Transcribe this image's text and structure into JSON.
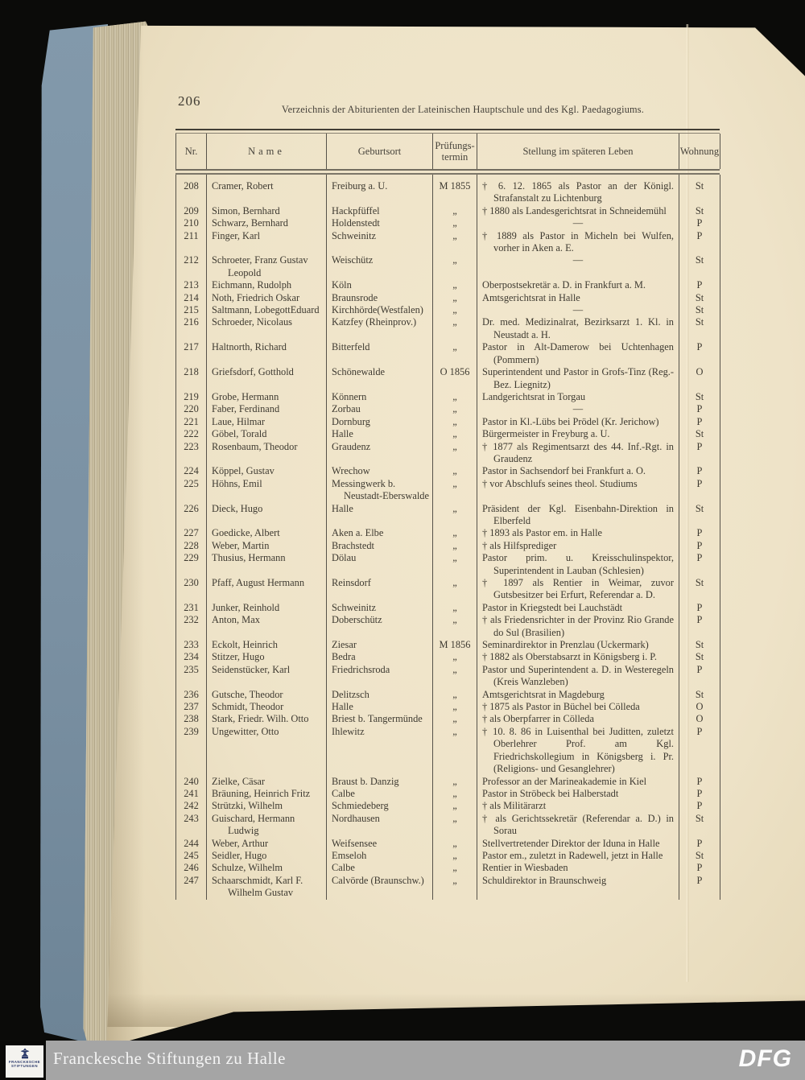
{
  "page": {
    "page_number": "206",
    "title": "Verzeichnis der Abiturienten der Lateinischen Hauptschule und des Kgl. Paedagogiums."
  },
  "table": {
    "headers": {
      "nr": "Nr.",
      "name": "Name",
      "birthplace": "Geburtsort",
      "term_line1": "Prüfungs-",
      "term_line2": "termin",
      "career": "Stellung im späteren Leben",
      "residence": "Wohnung"
    },
    "rows": [
      {
        "nr": "208",
        "name": "Cramer, Robert",
        "birthplace": "Freiburg a. U.",
        "term": "M 1855",
        "career": "† 6. 12. 1865 als Pastor an der Königl. Strafanstalt zu Lichtenburg",
        "residence": "St"
      },
      {
        "nr": "209",
        "name": "Simon, Bernhard",
        "birthplace": "Hackpfüffel",
        "term": "„",
        "career": "† 1880 als Landesgerichtsrat in Schneidemühl",
        "residence": "St"
      },
      {
        "nr": "210",
        "name": "Schwarz, Bernhard",
        "birthplace": "Holdenstedt",
        "term": "„",
        "career": "—",
        "residence": "P"
      },
      {
        "nr": "211",
        "name": "Finger, Karl",
        "birthplace": "Schweinitz",
        "term": "„",
        "career": "† 1889 als Pastor in Micheln bei Wulfen, vorher in Aken a. E.",
        "residence": "P"
      },
      {
        "nr": "212",
        "name": "Schroeter, Franz Gustav Leopold",
        "birthplace": "Weischütz",
        "term": "„",
        "career": "—",
        "residence": "St"
      },
      {
        "nr": "213",
        "name": "Eichmann, Rudolph",
        "birthplace": "Köln",
        "term": "„",
        "career": "Oberpostsekretär a. D. in Frankfurt a. M.",
        "residence": "P"
      },
      {
        "nr": "214",
        "name": "Noth, Friedrich Oskar",
        "birthplace": "Braunsrode",
        "term": "„",
        "career": "Amtsgerichtsrat in Halle",
        "residence": "St"
      },
      {
        "nr": "215",
        "name": "Saltmann, LobegottEduard",
        "birthplace": "Kirchhörde(Westfalen)",
        "term": "„",
        "career": "—",
        "residence": "St"
      },
      {
        "nr": "216",
        "name": "Schroeder, Nicolaus",
        "birthplace": "Katzfey (Rheinprov.)",
        "term": "„",
        "career": "Dr. med. Medizinalrat, Bezirksarzt 1. Kl. in Neustadt a. H.",
        "residence": "St"
      },
      {
        "nr": "217",
        "name": "Haltnorth, Richard",
        "birthplace": "Bitterfeld",
        "term": "„",
        "career": "Pastor in Alt-Damerow bei Uchtenhagen (Pommern)",
        "residence": "P"
      },
      {
        "nr": "218",
        "name": "Griefsdorf, Gotthold",
        "birthplace": "Schönewalde",
        "term": "O 1856",
        "career": "Superintendent und Pastor in Grofs-Tinz (Reg.-Bez. Liegnitz)",
        "residence": "O"
      },
      {
        "nr": "219",
        "name": "Grobe, Hermann",
        "birthplace": "Könnern",
        "term": "„",
        "career": "Landgerichtsrat in Torgau",
        "residence": "St"
      },
      {
        "nr": "220",
        "name": "Faber, Ferdinand",
        "birthplace": "Zorbau",
        "term": "„",
        "career": "—",
        "residence": "P"
      },
      {
        "nr": "221",
        "name": "Laue, Hilmar",
        "birthplace": "Dornburg",
        "term": "„",
        "career": "Pastor in Kl.-Lübs bei Prödel (Kr. Jerichow)",
        "residence": "P"
      },
      {
        "nr": "222",
        "name": "Göbel, Torald",
        "birthplace": "Halle",
        "term": "„",
        "career": "Bürgermeister in Freyburg a. U.",
        "residence": "St"
      },
      {
        "nr": "223",
        "name": "Rosenbaum, Theodor",
        "birthplace": "Graudenz",
        "term": "„",
        "career": "† 1877 als Regimentsarzt des 44. Inf.-Rgt. in Graudenz",
        "residence": "P"
      },
      {
        "nr": "224",
        "name": "Köppel, Gustav",
        "birthplace": "Wrechow",
        "term": "„",
        "career": "Pastor in Sachsendorf bei Frankfurt a. O.",
        "residence": "P"
      },
      {
        "nr": "225",
        "name": "Höhns, Emil",
        "birthplace": "Messingwerk b. Neustadt-Eberswalde",
        "term": "„",
        "career": "† vor Abschlufs seines theol. Studiums",
        "residence": "P"
      },
      {
        "nr": "226",
        "name": "Dieck, Hugo",
        "birthplace": "Halle",
        "term": "„",
        "career": "Präsident der Kgl. Eisenbahn-Direktion in Elberfeld",
        "residence": "St"
      },
      {
        "nr": "227",
        "name": "Goedicke, Albert",
        "birthplace": "Aken a. Elbe",
        "term": "„",
        "career": "† 1893 als Pastor em. in Halle",
        "residence": "P"
      },
      {
        "nr": "228",
        "name": "Weber, Martin",
        "birthplace": "Brachstedt",
        "term": "„",
        "career": "† als Hilfsprediger",
        "residence": "P"
      },
      {
        "nr": "229",
        "name": "Thusius, Hermann",
        "birthplace": "Dölau",
        "term": "„",
        "career": "Pastor prim. u. Kreisschulinspektor, Superintendent in Lauban (Schlesien)",
        "residence": "P"
      },
      {
        "nr": "230",
        "name": "Pfaff, August Hermann",
        "birthplace": "Reinsdorf",
        "term": "„",
        "career": "† 1897 als Rentier in Weimar, zuvor Gutsbesitzer bei Erfurt, Referendar a. D.",
        "residence": "St"
      },
      {
        "nr": "231",
        "name": "Junker, Reinhold",
        "birthplace": "Schweinitz",
        "term": "„",
        "career": "Pastor in Kriegstedt bei Lauchstädt",
        "residence": "P"
      },
      {
        "nr": "232",
        "name": "Anton, Max",
        "birthplace": "Doberschütz",
        "term": "„",
        "career": "† als Friedensrichter in der Provinz Rio Grande do Sul (Brasilien)",
        "residence": "P"
      },
      {
        "nr": "233",
        "name": "Eckolt, Heinrich",
        "birthplace": "Ziesar",
        "term": "M 1856",
        "career": "Seminardirektor in Prenzlau (Uckermark)",
        "residence": "St"
      },
      {
        "nr": "234",
        "name": "Stitzer, Hugo",
        "birthplace": "Bedra",
        "term": "„",
        "career": "† 1882 als Oberstabsarzt in Königsberg i. P.",
        "residence": "St"
      },
      {
        "nr": "235",
        "name": "Seidenstücker, Karl",
        "birthplace": "Friedrichsroda",
        "term": "„",
        "career": "Pastor und Superintendent a. D. in Westeregeln (Kreis Wanzleben)",
        "residence": "P"
      },
      {
        "nr": "236",
        "name": "Gutsche, Theodor",
        "birthplace": "Delitzsch",
        "term": "„",
        "career": "Amtsgerichtsrat in Magdeburg",
        "residence": "St"
      },
      {
        "nr": "237",
        "name": "Schmidt, Theodor",
        "birthplace": "Halle",
        "term": "„",
        "career": "† 1875 als Pastor in Büchel bei Cölleda",
        "residence": "O"
      },
      {
        "nr": "238",
        "name": "Stark, Friedr. Wilh. Otto",
        "birthplace": "Briest b. Tangermünde",
        "term": "„",
        "career": "† als Oberpfarrer in Cölleda",
        "residence": "O"
      },
      {
        "nr": "239",
        "name": "Ungewitter, Otto",
        "birthplace": "Ihlewitz",
        "term": "„",
        "career": "† 10. 8. 86 in Luisenthal bei Juditten, zuletzt Oberlehrer Prof. am Kgl. Friedrichskollegium in Königsberg i. Pr. (Religions- und Gesanglehrer)",
        "residence": "P"
      },
      {
        "nr": "240",
        "name": "Zielke, Cäsar",
        "birthplace": "Braust b. Danzig",
        "term": "„",
        "career": "Professor an der Marineakademie in Kiel",
        "residence": "P"
      },
      {
        "nr": "241",
        "name": "Bräuning, Heinrich Fritz",
        "birthplace": "Calbe",
        "term": "„",
        "career": "Pastor in Ströbeck bei Halberstadt",
        "residence": "P"
      },
      {
        "nr": "242",
        "name": "Strützki, Wilhelm",
        "birthplace": "Schmiedeberg",
        "term": "„",
        "career": "† als Militärarzt",
        "residence": "P"
      },
      {
        "nr": "243",
        "name": "Guischard, Hermann Ludwig",
        "birthplace": "Nordhausen",
        "term": "„",
        "career": "† als Gerichtssekretär (Referendar a. D.) in Sorau",
        "residence": "St"
      },
      {
        "nr": "244",
        "name": "Weber, Arthur",
        "birthplace": "Weifsensee",
        "term": "„",
        "career": "Stellvertretender Direktor der Iduna in Halle",
        "residence": "P"
      },
      {
        "nr": "245",
        "name": "Seidler, Hugo",
        "birthplace": "Emseloh",
        "term": "„",
        "career": "Pastor em., zuletzt in Radewell, jetzt in Halle",
        "residence": "St"
      },
      {
        "nr": "246",
        "name": "Schulze, Wilhelm",
        "birthplace": "Calbe",
        "term": "„",
        "career": "Rentier in Wiesbaden",
        "residence": "P"
      },
      {
        "nr": "247",
        "name": "Schaarschmidt, Karl F. Wilhelm Gustav",
        "birthplace": "Calvörde (Braunschw.)",
        "term": "„",
        "career": "Schuldirektor in Braunschweig",
        "residence": "P"
      }
    ]
  },
  "footer": {
    "institution": "Franckesche Stiftungen zu Halle",
    "logo_caption_line1": "FRANCKESCHE",
    "logo_caption_line2": "STIFTUNGEN",
    "dfg_label": "DFG"
  },
  "colors": {
    "page_paper": "#eee3c8",
    "book_cover": "#7b91a3",
    "page_edges": "#c5bb9e",
    "ink": "#3e3a31",
    "footer_bar": "#a5a5a5",
    "logo_navy": "#2b3a6b",
    "background": "#0b0b09"
  }
}
